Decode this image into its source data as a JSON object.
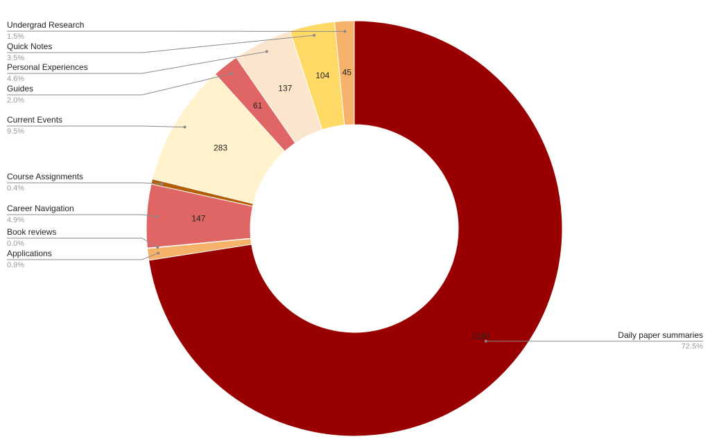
{
  "chart_data": {
    "type": "donut",
    "categories": [
      "Daily paper summaries",
      "Applications",
      "Book reviews",
      "Career Navigation",
      "Course Assignments",
      "Current Events",
      "Guides",
      "Personal Experiences",
      "Quick Notes",
      "Undergrad Research"
    ],
    "values": [
      2160,
      27,
      1,
      147,
      12,
      283,
      61,
      137,
      104,
      45
    ],
    "percent_labels": [
      "72.5%",
      "0.9%",
      "0.0%",
      "4.9%",
      "0.4%",
      "9.5%",
      "2.0%",
      "4.6%",
      "3.5%",
      "1.5%"
    ],
    "colors": [
      "#990000",
      "#f6b26b",
      "#ffd966",
      "#e06666",
      "#b45f06",
      "#fff2cc",
      "#e06666",
      "#fce5cd",
      "#ffd966",
      "#f6b26b"
    ]
  }
}
